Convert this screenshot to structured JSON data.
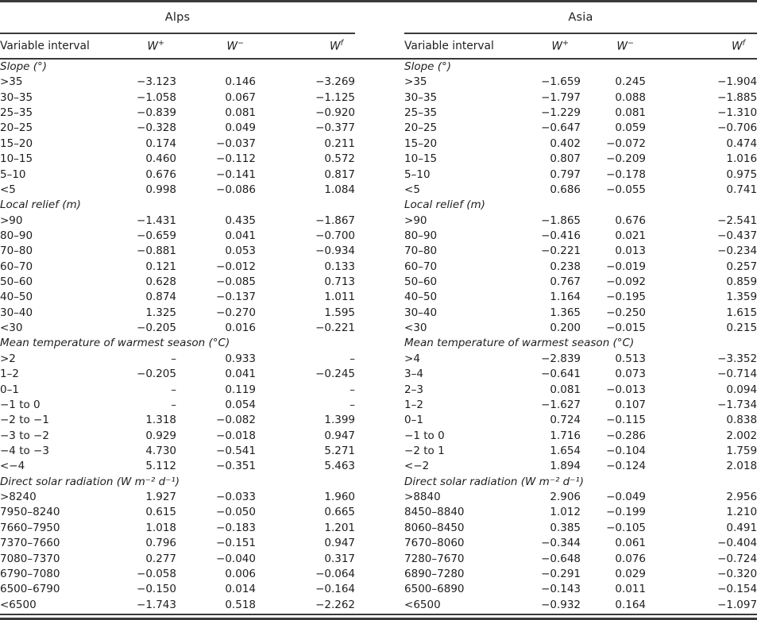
{
  "table": {
    "columns": {
      "variable": "Variable interval",
      "w_plus": {
        "base": "W",
        "sup": "+"
      },
      "w_minus": {
        "base": "W",
        "sup": "−"
      },
      "w_final": {
        "base": "W",
        "sup": "f"
      }
    },
    "regions": [
      {
        "name": "Alps",
        "sections": [
          {
            "title": "Slope (°)",
            "rows": [
              [
                ">35",
                "−3.123",
                "0.146",
                "−3.269"
              ],
              [
                "30–35",
                "−1.058",
                "0.067",
                "−1.125"
              ],
              [
                "25–35",
                "−0.839",
                "0.081",
                "−0.920"
              ],
              [
                "20–25",
                "−0.328",
                "0.049",
                "−0.377"
              ],
              [
                "15–20",
                "0.174",
                "−0.037",
                "0.211"
              ],
              [
                "10–15",
                "0.460",
                "−0.112",
                "0.572"
              ],
              [
                "5–10",
                "0.676",
                "−0.141",
                "0.817"
              ],
              [
                "<5",
                "0.998",
                "−0.086",
                "1.084"
              ]
            ]
          },
          {
            "title": "Local relief (m)",
            "rows": [
              [
                ">90",
                "−1.431",
                "0.435",
                "−1.867"
              ],
              [
                "80–90",
                "−0.659",
                "0.041",
                "−0.700"
              ],
              [
                "70–80",
                "−0.881",
                "0.053",
                "−0.934"
              ],
              [
                "60–70",
                "0.121",
                "−0.012",
                "0.133"
              ],
              [
                "50–60",
                "0.628",
                "−0.085",
                "0.713"
              ],
              [
                "40–50",
                "0.874",
                "−0.137",
                "1.011"
              ],
              [
                "30–40",
                "1.325",
                "−0.270",
                "1.595"
              ],
              [
                "<30",
                "−0.205",
                "0.016",
                "−0.221"
              ]
            ]
          },
          {
            "title": "Mean temperature of warmest season (°C)",
            "rows": [
              [
                ">2",
                "–",
                "0.933",
                "–"
              ],
              [
                "1–2",
                "−0.205",
                "0.041",
                "−0.245"
              ],
              [
                "0–1",
                "–",
                "0.119",
                "–"
              ],
              [
                "−1 to 0",
                "–",
                "0.054",
                "–"
              ],
              [
                "−2 to −1",
                "1.318",
                "−0.082",
                "1.399"
              ],
              [
                "−3 to −2",
                "0.929",
                "−0.018",
                "0.947"
              ],
              [
                "−4 to −3",
                "4.730",
                "−0.541",
                "5.271"
              ],
              [
                "<−4",
                "5.112",
                "−0.351",
                "5.463"
              ]
            ]
          },
          {
            "title": "Direct solar radiation (W m⁻² d⁻¹)",
            "rows": [
              [
                ">8240",
                "1.927",
                "−0.033",
                "1.960"
              ],
              [
                "7950–8240",
                "0.615",
                "−0.050",
                "0.665"
              ],
              [
                "7660–7950",
                "1.018",
                "−0.183",
                "1.201"
              ],
              [
                "7370–7660",
                "0.796",
                "−0.151",
                "0.947"
              ],
              [
                "7080–7370",
                "0.277",
                "−0.040",
                "0.317"
              ],
              [
                "6790–7080",
                "−0.058",
                "0.006",
                "−0.064"
              ],
              [
                "6500–6790",
                "−0.150",
                "0.014",
                "−0.164"
              ],
              [
                "<6500",
                "−1.743",
                "0.518",
                "−2.262"
              ]
            ]
          }
        ]
      },
      {
        "name": "Asia",
        "sections": [
          {
            "title": "Slope (°)",
            "rows": [
              [
                ">35",
                "−1.659",
                "0.245",
                "−1.904"
              ],
              [
                "30–35",
                "−1.797",
                "0.088",
                "−1.885"
              ],
              [
                "25–35",
                "−1.229",
                "0.081",
                "−1.310"
              ],
              [
                "20–25",
                "−0.647",
                "0.059",
                "−0.706"
              ],
              [
                "15–20",
                "0.402",
                "−0.072",
                "0.474"
              ],
              [
                "10–15",
                "0.807",
                "−0.209",
                "1.016"
              ],
              [
                "5–10",
                "0.797",
                "−0.178",
                "0.975"
              ],
              [
                "<5",
                "0.686",
                "−0.055",
                "0.741"
              ]
            ]
          },
          {
            "title": "Local relief (m)",
            "rows": [
              [
                ">90",
                "−1.865",
                "0.676",
                "−2.541"
              ],
              [
                "80–90",
                "−0.416",
                "0.021",
                "−0.437"
              ],
              [
                "70–80",
                "−0.221",
                "0.013",
                "−0.234"
              ],
              [
                "60–70",
                "0.238",
                "−0.019",
                "0.257"
              ],
              [
                "50–60",
                "0.767",
                "−0.092",
                "0.859"
              ],
              [
                "40–50",
                "1.164",
                "−0.195",
                "1.359"
              ],
              [
                "30–40",
                "1.365",
                "−0.250",
                "1.615"
              ],
              [
                "<30",
                "0.200",
                "−0.015",
                "0.215"
              ]
            ]
          },
          {
            "title": "Mean temperature of warmest season (°C)",
            "rows": [
              [
                ">4",
                "−2.839",
                "0.513",
                "−3.352"
              ],
              [
                "3–4",
                "−0.641",
                "0.073",
                "−0.714"
              ],
              [
                "2–3",
                "0.081",
                "−0.013",
                "0.094"
              ],
              [
                "1–2",
                "−1.627",
                "0.107",
                "−1.734"
              ],
              [
                "0–1",
                "0.724",
                "−0.115",
                "0.838"
              ],
              [
                "−1 to 0",
                "1.716",
                "−0.286",
                "2.002"
              ],
              [
                "−2 to 1",
                "1.654",
                "−0.104",
                "1.759"
              ],
              [
                "<−2",
                "1.894",
                "−0.124",
                "2.018"
              ]
            ]
          },
          {
            "title": "Direct solar radiation (W m⁻² d⁻¹)",
            "rows": [
              [
                ">8840",
                "2.906",
                "−0.049",
                "2.956"
              ],
              [
                "8450–8840",
                "1.012",
                "−0.199",
                "1.210"
              ],
              [
                "8060–8450",
                "0.385",
                "−0.105",
                "0.491"
              ],
              [
                "7670–8060",
                "−0.344",
                "0.061",
                "−0.404"
              ],
              [
                "7280–7670",
                "−0.648",
                "0.076",
                "−0.724"
              ],
              [
                "6890–7280",
                "−0.291",
                "0.029",
                "−0.320"
              ],
              [
                "6500–6890",
                "−0.143",
                "0.011",
                "−0.154"
              ],
              [
                "<6500",
                "−0.932",
                "0.164",
                "−1.097"
              ]
            ]
          }
        ]
      }
    ]
  }
}
